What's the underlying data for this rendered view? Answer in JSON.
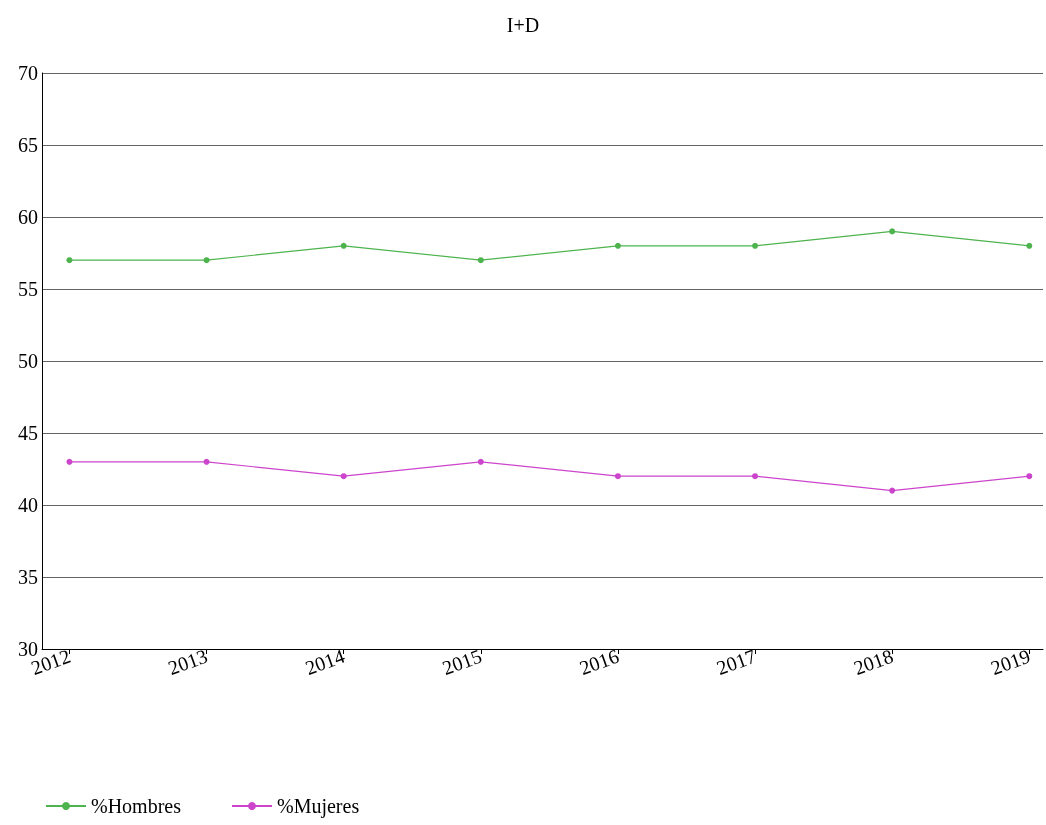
{
  "chart_data": {
    "type": "line",
    "title": "I+D",
    "x": [
      2012,
      2013,
      2014,
      2015,
      2016,
      2017,
      2018,
      2019
    ],
    "xlim": [
      2011.8,
      2019.1
    ],
    "xticks": [
      2012,
      2013,
      2014,
      2015,
      2016,
      2017,
      2018,
      2019
    ],
    "ylim": [
      30,
      70
    ],
    "yticks": [
      30,
      35,
      40,
      45,
      50,
      55,
      60,
      65,
      70
    ],
    "series": [
      {
        "name": "%Hombres",
        "color": "#4db34d",
        "values": [
          57,
          57,
          58,
          57,
          58,
          58,
          59,
          58
        ]
      },
      {
        "name": "%Mujeres",
        "color": "#cc44cc",
        "values": [
          43,
          43,
          42,
          43,
          42,
          42,
          41,
          42
        ]
      }
    ],
    "grid": "y",
    "legend": "bottom left",
    "marker": "circle",
    "line_style": "solid"
  }
}
